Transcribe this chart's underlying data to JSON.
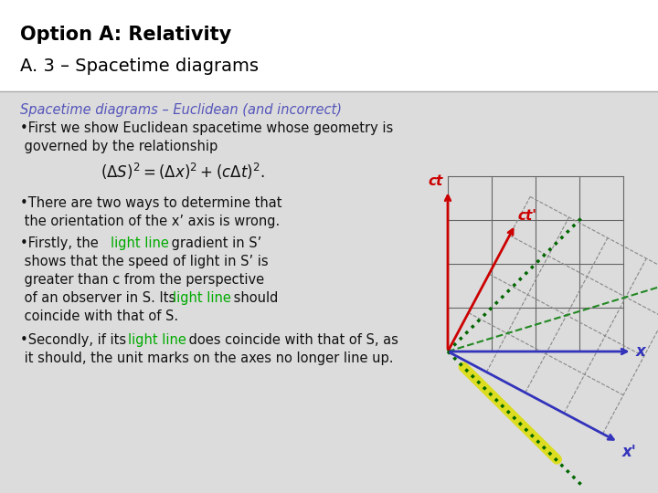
{
  "title_line1": "Option A: Relativity",
  "title_line2": "A. 3 – Spacetime diagrams",
  "subtitle": "Spacetime diagrams – Euclidean (and incorrect)",
  "subtitle_color": "#5555bb",
  "bg_color": "#dcdcdc",
  "white_bg": "#ffffff",
  "green_color": "#00aa00",
  "text_color": "#111111",
  "diagram": {
    "ct_color": "#cc0000",
    "ct_prime_color": "#cc0000",
    "x_color": "#3333bb",
    "x_prime_color": "#3333bb",
    "grid_color": "#666666",
    "dashed_grid_color": "#888888",
    "light_line_color": "#006600",
    "yellow_line_color": "#dddd00",
    "theta_deg": 28
  }
}
